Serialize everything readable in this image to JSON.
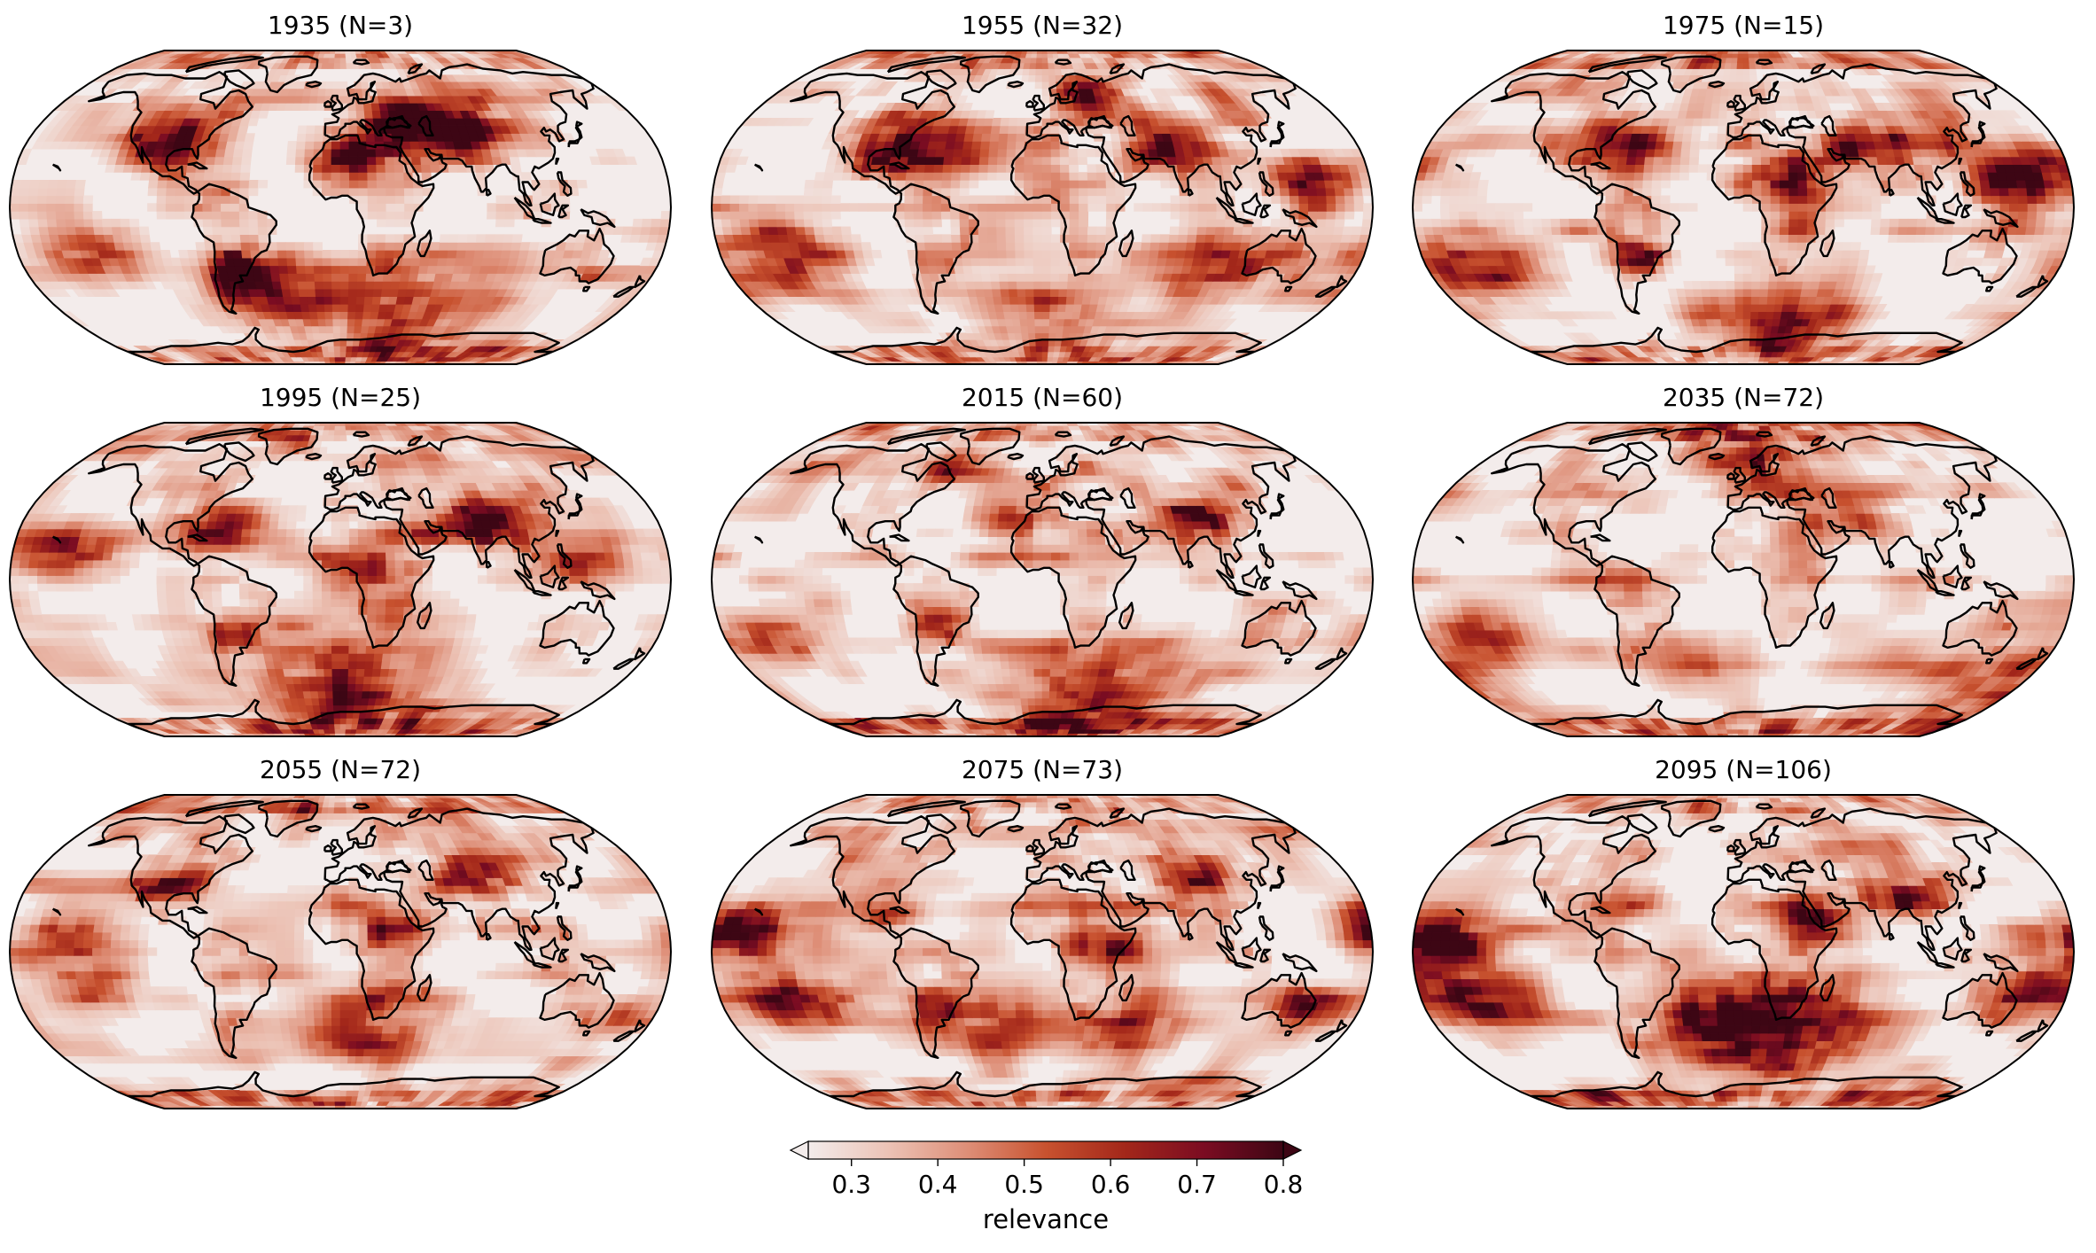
{
  "panels": [
    {
      "title": "1935 (N=3)"
    },
    {
      "title": "1955 (N=32)"
    },
    {
      "title": "1975 (N=15)"
    },
    {
      "title": "1995 (N=25)"
    },
    {
      "title": "2015 (N=60)"
    },
    {
      "title": "2035 (N=72)"
    },
    {
      "title": "2055 (N=72)"
    },
    {
      "title": "2075 (N=73)"
    },
    {
      "title": "2095 (N=106)"
    }
  ],
  "colorbar": {
    "label": "relevance",
    "ticks": [
      "0.3",
      "0.4",
      "0.5",
      "0.6",
      "0.7",
      "0.8"
    ],
    "tick_values": [
      0.3,
      0.4,
      0.5,
      0.6,
      0.7,
      0.8
    ],
    "vmin": 0.25,
    "vmax": 0.8,
    "extend": "both",
    "colormap": [
      "#f3eceb",
      "#ecc3b6",
      "#de8f78",
      "#c8522f",
      "#a3271a",
      "#7b0c22",
      "#3d0614"
    ]
  },
  "map": {
    "projection": "Robinson",
    "coastlines": true,
    "background_color": "#f3eceb"
  }
}
